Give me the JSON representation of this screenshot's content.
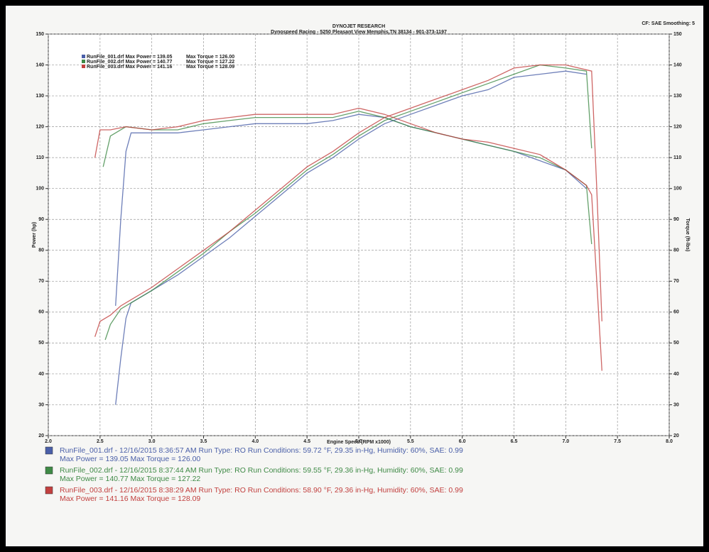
{
  "chart_data": {
    "type": "line",
    "title": "DYNOJET RESEARCH",
    "subtitle": "Dynospeed  Racing - 5250 Pleasant View Memphis,TN 38134 - 901-373-1197",
    "corner_note": "CF: SAE  Smoothing: 5",
    "xlabel": "Engine Speed (RPM x1000)",
    "ylabel": "Power (hp)",
    "y2label": "Torque (ft-lbs)",
    "xlim": [
      2,
      8
    ],
    "xticks": [
      {
        "value": 2,
        "label": "2.0"
      },
      2.5,
      {
        "value": 3,
        "label": "3.0"
      },
      3.5,
      {
        "value": 4,
        "label": "4.0"
      },
      4.5,
      {
        "value": 5,
        "label": "5.0"
      },
      5.5,
      {
        "value": 6,
        "label": "6.0"
      },
      6.5,
      {
        "value": 7,
        "label": "7.0"
      },
      7.5,
      {
        "value": 8,
        "label": "8.0"
      }
    ],
    "ylim": [
      20,
      150
    ],
    "yticks": [
      20,
      30,
      40,
      50,
      60,
      70,
      80,
      90,
      100,
      110,
      120,
      130,
      140,
      150
    ],
    "y2lim": [
      20,
      150
    ],
    "y2ticks": [
      20,
      30,
      40,
      50,
      60,
      70,
      80,
      90,
      100,
      110,
      120,
      130,
      140,
      150
    ],
    "grid": true,
    "series": [
      {
        "name": "RunFile_001.drf Max Power = 139.05",
        "color": "#4a5fa8",
        "x": [
          2.65,
          2.7,
          2.75,
          2.8,
          3.0,
          3.25,
          3.5,
          3.75,
          4.0,
          4.25,
          4.5,
          4.75,
          5.0,
          5.25,
          5.5,
          5.75,
          6.0,
          6.25,
          6.5,
          6.75,
          7.0,
          7.2
        ],
        "values": [
          30,
          45,
          58,
          63,
          67,
          72,
          78,
          84,
          91,
          98,
          105,
          110,
          116,
          121,
          124,
          127,
          130,
          132,
          136,
          137,
          138,
          137
        ]
      },
      {
        "name": "Max Torque = 126.00",
        "color": "#4a5fa8",
        "axis": "y2",
        "x": [
          2.65,
          2.7,
          2.75,
          2.8,
          3.0,
          3.25,
          3.5,
          3.75,
          4.0,
          4.25,
          4.5,
          4.75,
          5.0,
          5.25,
          5.5,
          5.75,
          6.0,
          6.25,
          6.5,
          6.75,
          7.0,
          7.2
        ],
        "values": [
          62,
          90,
          112,
          118,
          118,
          118,
          119,
          120,
          121,
          121,
          121,
          122,
          124,
          123,
          120,
          118,
          116,
          114,
          112,
          109,
          106,
          100
        ]
      },
      {
        "name": "RunFile_002.drf Max Power = 140.77",
        "color": "#3f8a46",
        "x": [
          2.55,
          2.6,
          2.7,
          2.8,
          3.0,
          3.25,
          3.5,
          3.75,
          4.0,
          4.25,
          4.5,
          4.75,
          5.0,
          5.25,
          5.5,
          5.75,
          6.0,
          6.25,
          6.5,
          6.75,
          7.0,
          7.2,
          7.25
        ],
        "values": [
          51,
          56,
          61,
          63,
          67,
          73,
          79,
          86,
          92,
          99,
          106,
          111,
          117,
          122,
          125,
          128,
          131,
          134,
          137,
          140,
          139,
          138,
          113
        ]
      },
      {
        "name": "Max Torque = 127.22",
        "color": "#3f8a46",
        "axis": "y2",
        "x": [
          2.53,
          2.6,
          2.75,
          3.0,
          3.25,
          3.5,
          3.75,
          4.0,
          4.25,
          4.5,
          4.75,
          5.0,
          5.25,
          5.5,
          5.75,
          6.0,
          6.25,
          6.5,
          6.75,
          7.0,
          7.2,
          7.25
        ],
        "values": [
          107,
          117,
          120,
          119,
          119,
          121,
          122,
          123,
          123,
          123,
          123,
          125,
          123,
          120,
          118,
          116,
          114,
          112,
          110,
          106,
          101,
          82
        ]
      },
      {
        "name": "RunFile_003.drf Max Power = 141.16",
        "color": "#c2403f",
        "x": [
          2.45,
          2.5,
          2.6,
          2.7,
          2.8,
          3.0,
          3.25,
          3.5,
          3.75,
          4.0,
          4.25,
          4.5,
          4.75,
          5.0,
          5.25,
          5.5,
          5.75,
          6.0,
          6.25,
          6.5,
          6.75,
          7.0,
          7.25,
          7.3,
          7.35
        ],
        "values": [
          52,
          57,
          59,
          62,
          64,
          68,
          74,
          80,
          86,
          93,
          100,
          107,
          112,
          118,
          123,
          126,
          129,
          132,
          135,
          139,
          140,
          140,
          138,
          100,
          57
        ]
      },
      {
        "name": "Max Torque = 128.09",
        "color": "#c2403f",
        "axis": "y2",
        "x": [
          2.45,
          2.5,
          2.6,
          2.75,
          3.0,
          3.25,
          3.5,
          3.75,
          4.0,
          4.25,
          4.5,
          4.75,
          5.0,
          5.25,
          5.5,
          5.75,
          6.0,
          6.25,
          6.5,
          6.75,
          7.0,
          7.2,
          7.25,
          7.3,
          7.35
        ],
        "values": [
          110,
          119,
          119,
          120,
          119,
          120,
          122,
          123,
          124,
          124,
          124,
          124,
          126,
          124,
          121,
          118,
          116,
          115,
          113,
          111,
          106,
          101,
          98,
          70,
          41
        ]
      }
    ],
    "run_details": [
      [
        "RunFile_001.drf - 12/16/2015 8:36:57 AM  Run Type: RO  Run Conditions: 59.72 °F, 29.35 in-Hg,  Humidity:  60%, SAE: 0.99",
        "Max Power = 139.05  Max Torque = 126.00"
      ],
      [
        "RunFile_002.drf - 12/16/2015 8:37:44 AM  Run Type: RO  Run Conditions: 59.55 °F, 29.36 in-Hg,  Humidity:  60%, SAE: 0.99",
        "Max Power = 140.77  Max Torque = 127.22"
      ],
      [
        "RunFile_003.drf - 12/16/2015 8:38:29 AM  Run Type: RO  Run Conditions: 58.90 °F, 29.36 in-Hg,  Humidity:  60%, SAE: 0.99",
        "Max Power = 141.16  Max Torque = 128.09"
      ]
    ]
  }
}
